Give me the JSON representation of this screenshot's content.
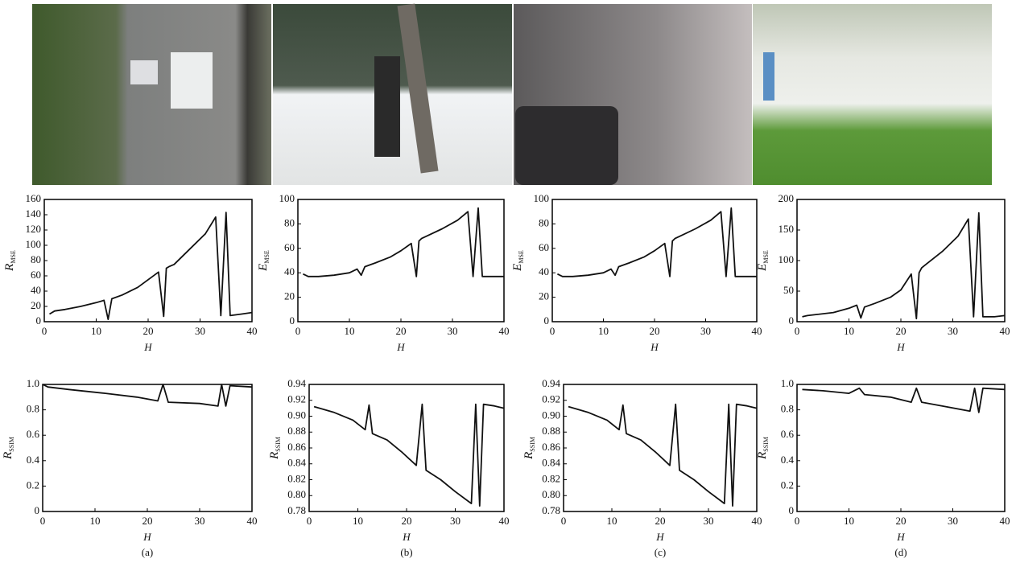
{
  "panel_labels": [
    "(a)",
    "(b)",
    "(c)",
    "(d)"
  ],
  "chart_data": [
    {
      "type": "line",
      "ylabel": "R",
      "ylabel_subscript": "MSE",
      "xlabel": "H",
      "color": "#111111",
      "x": [
        1,
        2,
        4,
        7,
        10,
        11.5,
        12.3,
        13,
        15,
        18,
        20,
        22,
        23,
        23.5,
        24,
        25,
        28,
        31,
        33,
        34,
        35,
        35.8,
        38,
        40
      ],
      "values": [
        10,
        14,
        16,
        20,
        25,
        28,
        3,
        30,
        35,
        45,
        55,
        65,
        7,
        70,
        72,
        75,
        95,
        115,
        137,
        8,
        143,
        8,
        10,
        12
      ],
      "xlim": [
        0,
        40
      ],
      "xticks": [
        0,
        10,
        20,
        30,
        40
      ],
      "ylim": [
        0,
        160
      ],
      "yticks": [
        0,
        20,
        40,
        60,
        80,
        100,
        120,
        140,
        160
      ]
    },
    {
      "type": "line",
      "ylabel": "E",
      "ylabel_subscript": "MSE",
      "xlabel": "H",
      "color": "#111111",
      "x": [
        1,
        2,
        4,
        7,
        10,
        11.5,
        12.3,
        13,
        15,
        18,
        20,
        22,
        23,
        23.5,
        24,
        25,
        28,
        31,
        33,
        34,
        35,
        35.8,
        38,
        40
      ],
      "values": [
        39,
        37,
        37,
        38,
        40,
        43,
        38,
        45,
        48,
        53,
        58,
        64,
        37,
        66,
        68,
        70,
        76,
        83,
        90,
        37,
        93,
        37,
        37,
        37
      ],
      "xlim": [
        0,
        40
      ],
      "xticks": [
        0,
        10,
        20,
        30,
        40
      ],
      "ylim": [
        0,
        100
      ],
      "yticks": [
        0,
        20,
        40,
        60,
        80,
        100
      ]
    },
    {
      "type": "line",
      "ylabel": "E",
      "ylabel_subscript": "MSE",
      "xlabel": "H",
      "color": "#111111",
      "x": [
        1,
        2,
        4,
        7,
        10,
        11.5,
        12.3,
        13,
        15,
        18,
        20,
        22,
        23,
        23.5,
        24,
        25,
        28,
        31,
        33,
        34,
        35,
        35.8,
        38,
        40
      ],
      "values": [
        39,
        37,
        37,
        38,
        40,
        43,
        38,
        45,
        48,
        53,
        58,
        64,
        37,
        66,
        68,
        70,
        76,
        83,
        90,
        37,
        93,
        37,
        37,
        37
      ],
      "xlim": [
        0,
        40
      ],
      "xticks": [
        0,
        10,
        20,
        30,
        40
      ],
      "ylim": [
        0,
        100
      ],
      "yticks": [
        0,
        20,
        40,
        60,
        80,
        100
      ]
    },
    {
      "type": "line",
      "ylabel": "E",
      "ylabel_subscript": "MSE",
      "xlabel": "H",
      "color": "#111111",
      "x": [
        1,
        2,
        4,
        7,
        10,
        11.5,
        12.3,
        13,
        15,
        18,
        20,
        22,
        23,
        23.5,
        24,
        25,
        28,
        31,
        33,
        34,
        35,
        35.8,
        38,
        40
      ],
      "values": [
        8,
        10,
        12,
        15,
        22,
        27,
        6,
        24,
        30,
        40,
        52,
        78,
        5,
        80,
        88,
        95,
        115,
        140,
        168,
        8,
        178,
        8,
        8,
        10
      ],
      "xlim": [
        0,
        40
      ],
      "xticks": [
        0,
        10,
        20,
        30,
        40
      ],
      "ylim": [
        0,
        200
      ],
      "yticks": [
        0,
        50,
        100,
        150,
        200
      ]
    },
    {
      "type": "line",
      "ylabel": "R",
      "ylabel_subscript": "SSIM",
      "xlabel": "H",
      "color": "#111111",
      "x": [
        0,
        1,
        5,
        12,
        18,
        22,
        23,
        24,
        30,
        33.5,
        34.2,
        35,
        35.8,
        40
      ],
      "values": [
        1.0,
        0.98,
        0.96,
        0.93,
        0.9,
        0.87,
        1.0,
        0.86,
        0.85,
        0.83,
        1.0,
        0.83,
        0.99,
        0.98
      ],
      "xlim": [
        0,
        40
      ],
      "xticks": [
        0,
        10,
        20,
        30,
        40
      ],
      "ylim": [
        0,
        1
      ],
      "yticks": [
        0,
        0.2,
        0.4,
        0.6,
        0.8,
        {
          "value": 1,
          "label": "1.0"
        }
      ]
    },
    {
      "type": "line",
      "ylabel": "R",
      "ylabel_subscript": "SSIM",
      "xlabel": "H",
      "color": "#111111",
      "x": [
        1,
        5,
        9,
        11.5,
        12.3,
        13,
        16,
        19,
        22,
        23.2,
        24,
        27,
        30,
        33.3,
        34.2,
        35,
        35.8,
        38,
        40
      ],
      "values": [
        0.912,
        0.905,
        0.895,
        0.883,
        0.914,
        0.878,
        0.87,
        0.855,
        0.838,
        0.915,
        0.832,
        0.82,
        0.805,
        0.79,
        0.915,
        0.787,
        0.915,
        0.913,
        0.91
      ],
      "xlim": [
        0,
        40
      ],
      "xticks": [
        0,
        10,
        20,
        30,
        40
      ],
      "ylim": [
        0.78,
        0.94
      ],
      "yticks": [
        0.78,
        {
          "value": 0.8,
          "label": "0.80"
        },
        0.82,
        0.84,
        0.86,
        0.88,
        {
          "value": 0.9,
          "label": "0.90"
        },
        0.92,
        0.94
      ]
    },
    {
      "type": "line",
      "ylabel": "R",
      "ylabel_subscript": "SSIM",
      "xlabel": "H",
      "color": "#111111",
      "x": [
        1,
        5,
        9,
        11.5,
        12.3,
        13,
        16,
        19,
        22,
        23.2,
        24,
        27,
        30,
        33.3,
        34.2,
        35,
        35.8,
        38,
        40
      ],
      "values": [
        0.912,
        0.905,
        0.895,
        0.883,
        0.914,
        0.878,
        0.87,
        0.855,
        0.838,
        0.915,
        0.832,
        0.82,
        0.805,
        0.79,
        0.915,
        0.787,
        0.915,
        0.913,
        0.91
      ],
      "xlim": [
        0,
        40
      ],
      "xticks": [
        0,
        10,
        20,
        30,
        40
      ],
      "ylim": [
        0.78,
        0.94
      ],
      "yticks": [
        0.78,
        {
          "value": 0.8,
          "label": "0.80"
        },
        0.82,
        0.84,
        0.86,
        0.88,
        {
          "value": 0.9,
          "label": "0.90"
        },
        0.92,
        0.94
      ]
    },
    {
      "type": "line",
      "ylabel": "R",
      "ylabel_subscript": "SSIM",
      "xlabel": "H",
      "color": "#111111",
      "x": [
        1,
        5,
        10,
        12,
        13,
        18,
        22,
        23,
        24,
        28,
        33.3,
        34.2,
        35,
        35.8,
        40
      ],
      "values": [
        0.96,
        0.95,
        0.93,
        0.97,
        0.92,
        0.9,
        0.86,
        0.97,
        0.86,
        0.83,
        0.79,
        0.97,
        0.78,
        0.97,
        0.96
      ],
      "xlim": [
        0,
        40
      ],
      "xticks": [
        0,
        10,
        20,
        30,
        40
      ],
      "ylim": [
        0,
        1
      ],
      "yticks": [
        0,
        0.2,
        0.4,
        0.6,
        0.8,
        {
          "value": 1,
          "label": "1.0"
        }
      ]
    }
  ]
}
